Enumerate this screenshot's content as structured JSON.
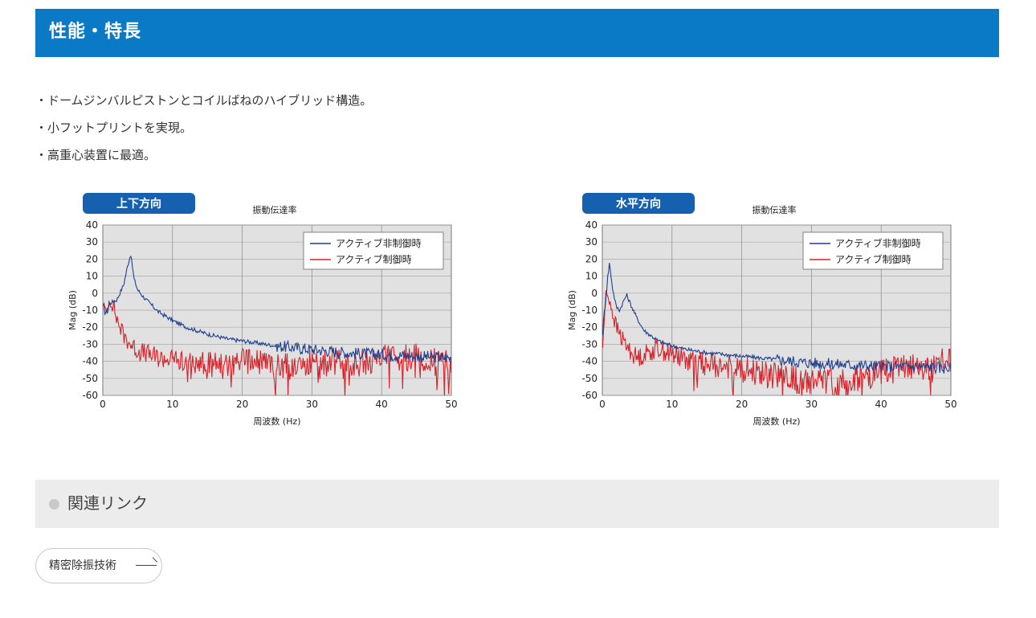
{
  "header": {
    "title": "性能・特長"
  },
  "features": [
    "・ドームジンバルピストンとコイルばねのハイブリッド構造。",
    "・小フットプリントを実現。",
    "・高重心装置に最適。"
  ],
  "charts": {
    "vertical": {
      "tab_label": "上下方向",
      "title": "振動伝達率",
      "ylabel": "Mag (dB)",
      "xlabel": "周波数 (Hz)",
      "legend": [
        "アクティブ非制御時",
        "アクティブ制御時"
      ]
    },
    "horizontal": {
      "tab_label": "水平方向",
      "title": "振動伝達率",
      "ylabel": "Mag (dB)",
      "xlabel": "周波数 (Hz)",
      "legend": [
        "アクティブ非制御時",
        "アクティブ制御時"
      ]
    }
  },
  "chart_data": [
    {
      "type": "line",
      "title": "振動伝達率",
      "xlabel": "周波数 (Hz)",
      "ylabel": "Mag (dB)",
      "xlim": [
        0,
        50
      ],
      "ylim": [
        -60,
        40
      ],
      "xticks": [
        0,
        10,
        20,
        30,
        40,
        50
      ],
      "yticks": [
        40,
        30,
        20,
        10,
        0,
        -10,
        -20,
        -30,
        -40,
        -50,
        -60
      ],
      "grid": true,
      "legend_position": "top-right",
      "series": [
        {
          "name": "アクティブ非制御時",
          "color": "#1f3f8f",
          "x": [
            0,
            0.5,
            1,
            2,
            3,
            3.5,
            4,
            4.5,
            5,
            6,
            8,
            10,
            12,
            15,
            18,
            20,
            25,
            30,
            35,
            40,
            45,
            50
          ],
          "y": [
            -8,
            -12,
            -6,
            -4,
            5,
            15,
            23,
            8,
            2,
            -3,
            -11,
            -16,
            -20,
            -24,
            -27,
            -28,
            -31,
            -33,
            -35,
            -36,
            -37,
            -38
          ]
        },
        {
          "name": "アクティブ制御時",
          "color": "#d9222a",
          "x": [
            0,
            0.5,
            1,
            1.5,
            2,
            3,
            4,
            5,
            6,
            8,
            10,
            12,
            15,
            18,
            20,
            25,
            30,
            35,
            40,
            45,
            50
          ],
          "y": [
            -5,
            -12,
            -3,
            -7,
            -15,
            -25,
            -30,
            -34,
            -35,
            -38,
            -39,
            -40,
            -41,
            -42,
            -40,
            -42,
            -41,
            -42,
            -39,
            -38,
            -42
          ]
        }
      ]
    },
    {
      "type": "line",
      "title": "振動伝達率",
      "xlabel": "周波数 (Hz)",
      "ylabel": "Mag (dB)",
      "xlim": [
        0,
        50
      ],
      "ylim": [
        -60,
        40
      ],
      "xticks": [
        0,
        10,
        20,
        30,
        40,
        50
      ],
      "yticks": [
        40,
        30,
        20,
        10,
        0,
        -10,
        -20,
        -30,
        -40,
        -50,
        -60
      ],
      "grid": true,
      "legend_position": "top-right",
      "series": [
        {
          "name": "アクティブ非制御時",
          "color": "#1f3f8f",
          "x": [
            0,
            0.5,
            1,
            1.5,
            2,
            2.5,
            3,
            3.5,
            4,
            5,
            6,
            8,
            10,
            12,
            15,
            20,
            25,
            30,
            35,
            40,
            45,
            50
          ],
          "y": [
            -25,
            -2,
            18,
            2,
            -8,
            -10,
            -5,
            -1,
            -6,
            -15,
            -22,
            -28,
            -31,
            -33,
            -35,
            -37,
            -39,
            -41,
            -42,
            -43,
            -43,
            -44
          ]
        },
        {
          "name": "アクティブ制御時",
          "color": "#d9222a",
          "x": [
            0,
            0.5,
            1,
            1.5,
            2,
            3,
            4,
            5,
            6,
            8,
            10,
            12,
            15,
            20,
            25,
            30,
            35,
            40,
            45,
            50
          ],
          "y": [
            -35,
            0,
            -3,
            -12,
            -20,
            -28,
            -34,
            -38,
            -36,
            -32,
            -36,
            -39,
            -42,
            -45,
            -49,
            -52,
            -53,
            -46,
            -44,
            -40
          ]
        }
      ]
    }
  ],
  "related": {
    "title": "関連リンク"
  },
  "related_link": {
    "label": "精密除振技術"
  },
  "colors": {
    "header_bg": "#0a79c6",
    "plot_bg": "#e1e1e1",
    "tab_bg": "#1561b0",
    "uncontrolled": "#1f3f8f",
    "controlled": "#d9222a"
  }
}
